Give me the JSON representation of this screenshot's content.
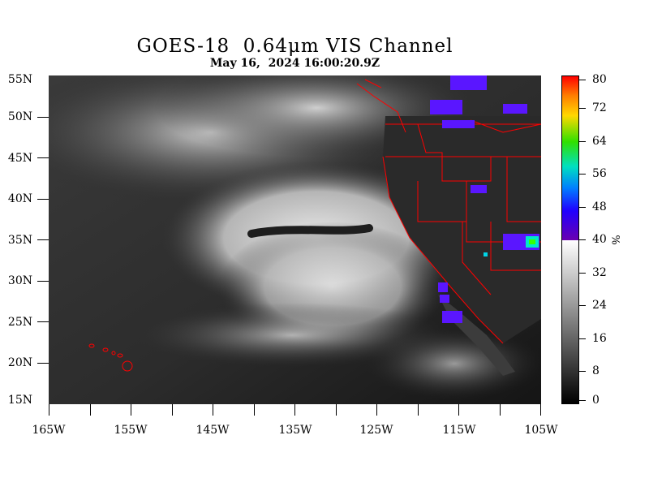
{
  "title": "GOES-18  0.64μm VIS Channel",
  "subtitle": "May 16,  2024 16:00:20.9Z",
  "map": {
    "lat_labels": [
      "55N",
      "50N",
      "45N",
      "40N",
      "35N",
      "30N",
      "25N",
      "20N",
      "15N"
    ],
    "lon_labels": [
      "165W",
      "155W",
      "145W",
      "135W",
      "125W",
      "115W",
      "105W"
    ],
    "boundary_color": "#ff0000",
    "cold_cloud_color": "#5a16ff"
  },
  "colorbar": {
    "labels": [
      "80",
      "72",
      "64",
      "56",
      "48",
      "40",
      "32",
      "24",
      "16",
      "8",
      "0"
    ],
    "unit": "%",
    "range": [
      0,
      80
    ],
    "grayscale_range": [
      0,
      40
    ],
    "color_range": [
      40,
      80
    ]
  }
}
